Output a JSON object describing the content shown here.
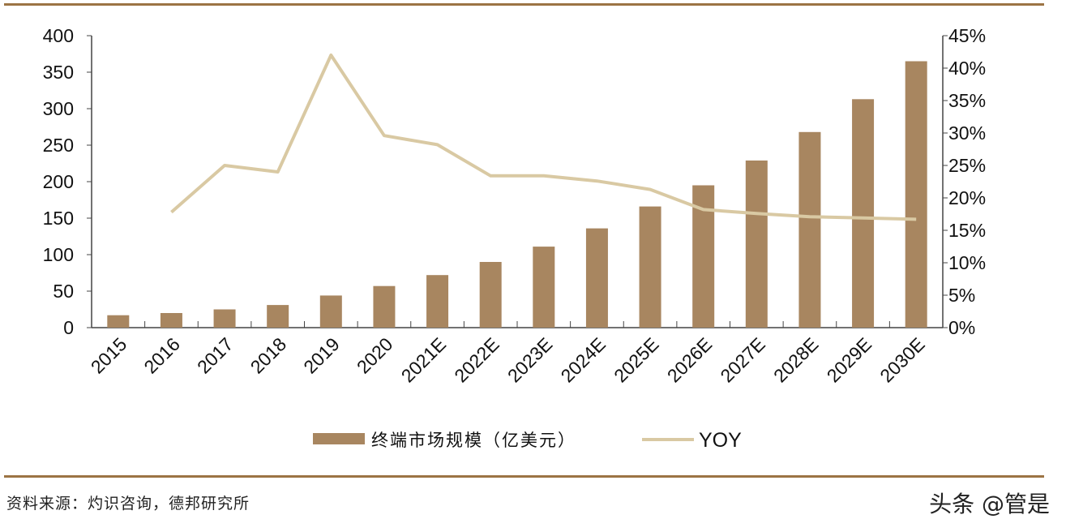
{
  "chart_data": {
    "type": "bar+line",
    "categories": [
      "2015",
      "2016",
      "2017",
      "2018",
      "2019",
      "2020",
      "2021E",
      "2022E",
      "2023E",
      "2024E",
      "2025E",
      "2026E",
      "2027E",
      "2028E",
      "2029E",
      "2030E"
    ],
    "series": [
      {
        "name": "终端市场规模（亿美元）",
        "type": "bar",
        "axis": "left",
        "color": "#A88660",
        "values": [
          17,
          20,
          25,
          31,
          44,
          57,
          72,
          90,
          111,
          136,
          166,
          195,
          229,
          268,
          313,
          365
        ]
      },
      {
        "name": "YOY",
        "type": "line",
        "axis": "right",
        "color": "#D9C9A3",
        "values": [
          null,
          17.8,
          25.0,
          24.0,
          42.0,
          29.6,
          28.2,
          23.4,
          23.4,
          22.6,
          21.3,
          18.2,
          17.6,
          17.1,
          16.9,
          16.7
        ]
      }
    ],
    "y_left": {
      "range": [
        0,
        400
      ],
      "ticks": [
        "0",
        "50",
        "100",
        "150",
        "200",
        "250",
        "300",
        "350",
        "400"
      ]
    },
    "y_right": {
      "range": [
        0,
        45
      ],
      "ticks": [
        "0%",
        "5%",
        "10%",
        "15%",
        "20%",
        "25%",
        "30%",
        "35%",
        "40%",
        "45%"
      ]
    },
    "grid": false,
    "legend_position": "bottom"
  },
  "footer": {
    "source": "资料来源：灼识咨询，德邦研究所",
    "watermark": "头条 @管是"
  }
}
